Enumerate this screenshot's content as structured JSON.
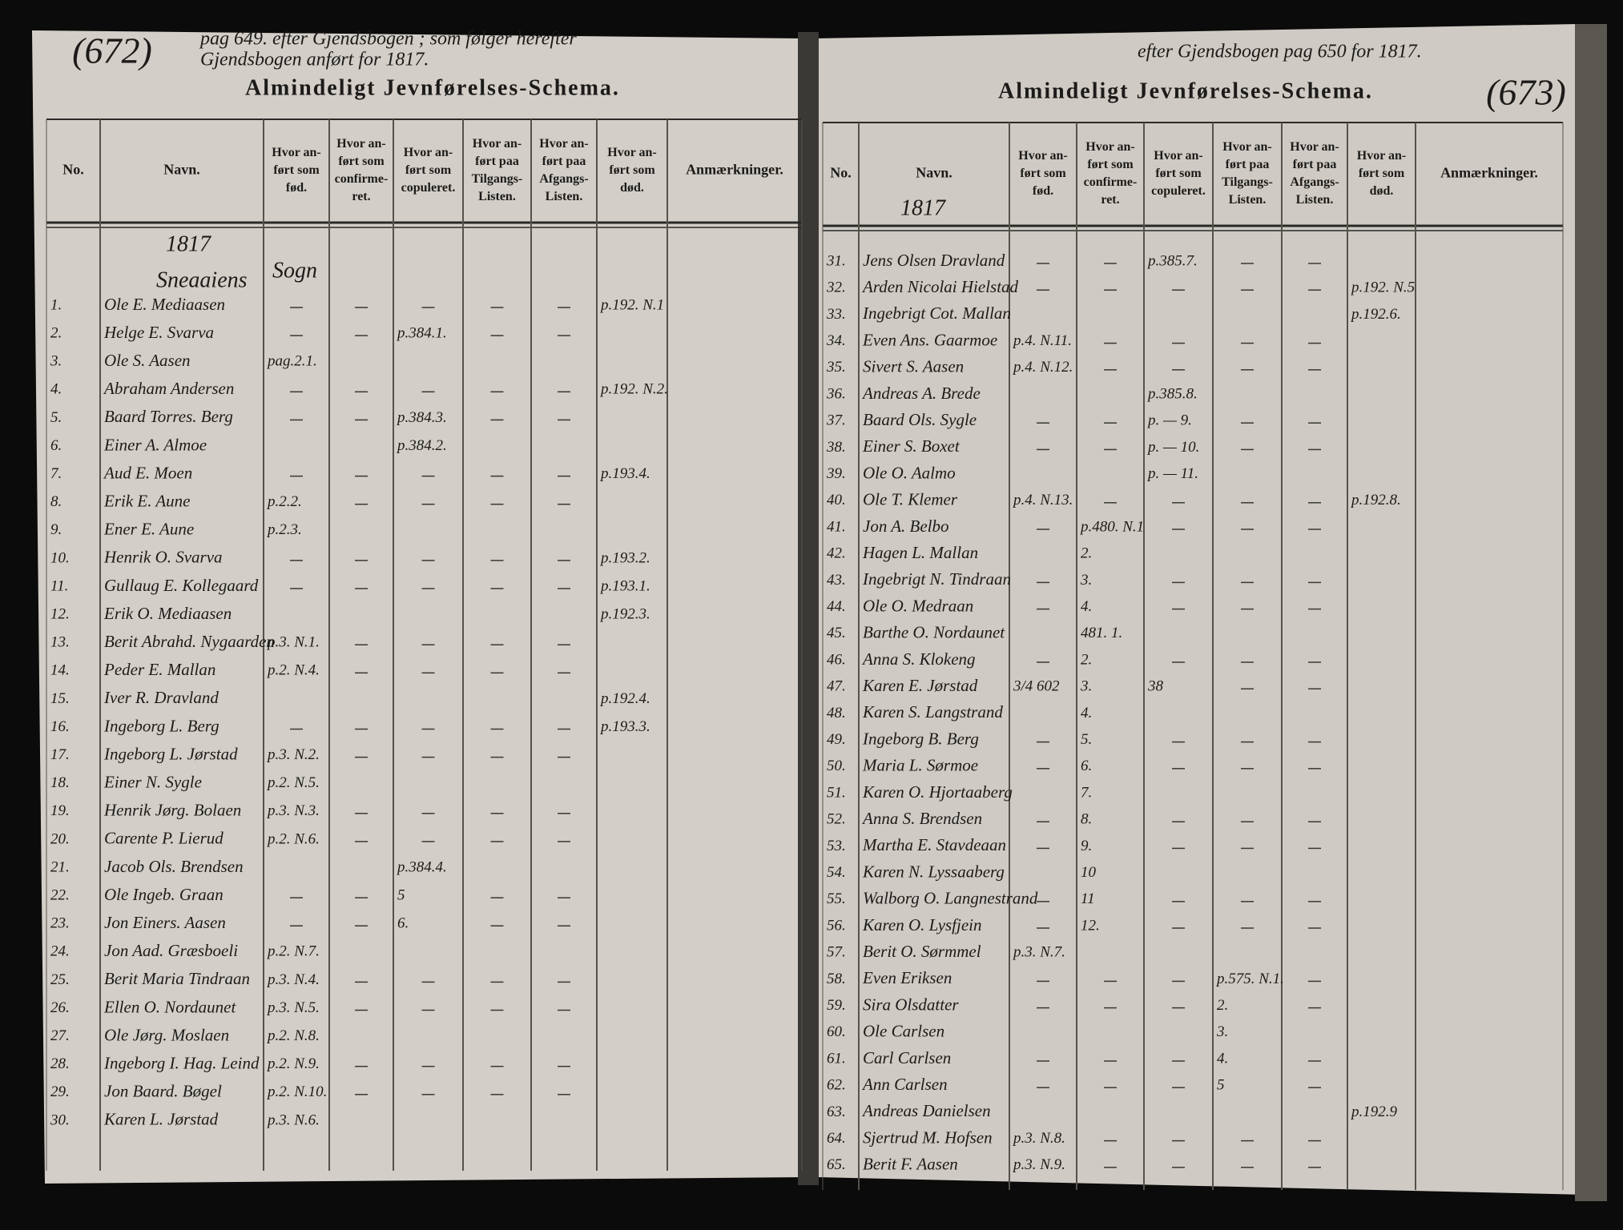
{
  "left_page": {
    "page_number": "(672)",
    "header_note": [
      "pag 649. efter Gjendsbogen ; som følger herefter",
      "Gjendsbogen anført for 1817."
    ],
    "title": "Almindeligt Jevnførelses-Schema.",
    "columns": [
      [
        "No."
      ],
      [
        "Navn."
      ],
      [
        "Hvor an-",
        "ført som",
        "fød."
      ],
      [
        "Hvor an-",
        "ført som",
        "confirme-",
        "ret."
      ],
      [
        "Hvor an-",
        "ført som",
        "copuleret."
      ],
      [
        "Hvor an-",
        "ført paa",
        "Tilgangs-",
        "Listen."
      ],
      [
        "Hvor an-",
        "ført paa",
        "Afgangs-",
        "Listen."
      ],
      [
        "Hvor an-",
        "ført som",
        "død."
      ],
      [
        "Anmærkninger."
      ]
    ],
    "year": "1817",
    "section": [
      "Sneaaiens",
      "Sogn"
    ],
    "rows": [
      {
        "no": "1.",
        "name": "Ole E. Mediaasen",
        "dod": "p.192. N.1"
      },
      {
        "no": "2.",
        "name": "Helge E. Svarva",
        "cop": "p.384.1."
      },
      {
        "no": "3.",
        "name": "Ole S. Aasen",
        "fod": "pag.2.1."
      },
      {
        "no": "4.",
        "name": "Abraham Andersen",
        "dod": "p.192. N.2."
      },
      {
        "no": "5.",
        "name": "Baard Torres. Berg",
        "cop": "p.384.3."
      },
      {
        "no": "6.",
        "name": "Einer A. Almoe",
        "cop": "p.384.2."
      },
      {
        "no": "7.",
        "name": "Aud E. Moen",
        "dod": "p.193.4."
      },
      {
        "no": "8.",
        "name": "Erik E. Aune",
        "fod": "p.2.2."
      },
      {
        "no": "9.",
        "name": "Ener E. Aune",
        "fod": "p.2.3."
      },
      {
        "no": "10.",
        "name": "Henrik O. Svarva",
        "dod": "p.193.2."
      },
      {
        "no": "11.",
        "name": "Gullaug E. Kollegaard",
        "dod": "p.193.1."
      },
      {
        "no": "12.",
        "name": "Erik O. Mediaasen",
        "dod": "p.192.3."
      },
      {
        "no": "13.",
        "name": "Berit Abrahd. Nygaarden",
        "fod": "p.3. N.1."
      },
      {
        "no": "14.",
        "name": "Peder E. Mallan",
        "fod": "p.2. N.4."
      },
      {
        "no": "15.",
        "name": "Iver R. Dravland",
        "dod": "p.192.4."
      },
      {
        "no": "16.",
        "name": "Ingeborg L. Berg",
        "dod": "p.193.3."
      },
      {
        "no": "17.",
        "name": "Ingeborg L. Jørstad",
        "fod": "p.3. N.2."
      },
      {
        "no": "18.",
        "name": "Einer N. Sygle",
        "fod": "p.2. N.5."
      },
      {
        "no": "19.",
        "name": "Henrik Jørg. Bolaen",
        "fod": "p.3. N.3."
      },
      {
        "no": "20.",
        "name": "Carente P. Lierud",
        "fod": "p.2. N.6."
      },
      {
        "no": "21.",
        "name": "Jacob Ols. Brendsen",
        "cop": "p.384.4."
      },
      {
        "no": "22.",
        "name": "Ole Ingeb. Graan",
        "cop": "5"
      },
      {
        "no": "23.",
        "name": "Jon Einers. Aasen",
        "cop": "6."
      },
      {
        "no": "24.",
        "name": "Jon Aad. Græsboeli",
        "fod": "p.2. N.7."
      },
      {
        "no": "25.",
        "name": "Berit Maria Tindraan",
        "fod": "p.3. N.4."
      },
      {
        "no": "26.",
        "name": "Ellen O. Nordaunet",
        "fod": "p.3. N.5."
      },
      {
        "no": "27.",
        "name": "Ole Jørg. Moslaen",
        "fod": "p.2. N.8."
      },
      {
        "no": "28.",
        "name": "Ingeborg I. Hag. Leind",
        "fod": "p.2. N.9."
      },
      {
        "no": "29.",
        "name": "Jon Baard. Bøgel",
        "fod": "p.2. N.10."
      },
      {
        "no": "30.",
        "name": "Karen L. Jørstad",
        "fod": "p.3. N.6."
      }
    ]
  },
  "right_page": {
    "page_number": "(673)",
    "header_note": [
      "efter Gjendsbogen pag 650 for 1817."
    ],
    "title": "Almindeligt Jevnførelses-Schema.",
    "columns": [
      [
        "No."
      ],
      [
        "Navn."
      ],
      [
        "Hvor an-",
        "ført som",
        "fød."
      ],
      [
        "Hvor an-",
        "ført som",
        "confirme-",
        "ret."
      ],
      [
        "Hvor an-",
        "ført som",
        "copuleret."
      ],
      [
        "Hvor an-",
        "ført paa",
        "Tilgangs-",
        "Listen."
      ],
      [
        "Hvor an-",
        "ført paa",
        "Afgangs-",
        "Listen."
      ],
      [
        "Hvor an-",
        "ført som",
        "død."
      ],
      [
        "Anmærkninger."
      ]
    ],
    "year": "1817",
    "rows": [
      {
        "no": "31.",
        "name": "Jens Olsen Dravland",
        "cop": "p.385.7."
      },
      {
        "no": "32.",
        "name": "Arden Nicolai Hielstad",
        "dod": "p.192. N.5"
      },
      {
        "no": "33.",
        "name": "Ingebrigt Cot. Mallan",
        "dod": "p.192.6."
      },
      {
        "no": "34.",
        "name": "Even Ans. Gaarmoe",
        "fod": "p.4. N.11."
      },
      {
        "no": "35.",
        "name": "Sivert S. Aasen",
        "fod": "p.4. N.12."
      },
      {
        "no": "36.",
        "name": "Andreas A. Brede",
        "cop": "p.385.8."
      },
      {
        "no": "37.",
        "name": "Baard Ols. Sygle",
        "cop": "p. — 9."
      },
      {
        "no": "38.",
        "name": "Einer S. Boxet",
        "cop": "p. — 10."
      },
      {
        "no": "39.",
        "name": "Ole O. Aalmo",
        "cop": "p. — 11."
      },
      {
        "no": "40.",
        "name": "Ole T. Klemer",
        "fod": "p.4. N.13.",
        "dod": "p.192.8."
      },
      {
        "no": "41.",
        "name": "Jon A. Belbo",
        "conf": "p.480. N.1"
      },
      {
        "no": "42.",
        "name": "Hagen L. Mallan",
        "conf": "2."
      },
      {
        "no": "43.",
        "name": "Ingebrigt N. Tindraan",
        "conf": "3."
      },
      {
        "no": "44.",
        "name": "Ole O. Medraan",
        "conf": "4."
      },
      {
        "no": "45.",
        "name": "Barthe O. Nordaunet",
        "conf": "481. 1."
      },
      {
        "no": "46.",
        "name": "Anna S. Klokeng",
        "conf": "2."
      },
      {
        "no": "47.",
        "name": "Karen E. Jørstad",
        "fod": "3/4 602",
        "conf": "3.",
        "cop": "38"
      },
      {
        "no": "48.",
        "name": "Karen S. Langstrand",
        "conf": "4."
      },
      {
        "no": "49.",
        "name": "Ingeborg B. Berg",
        "conf": "5."
      },
      {
        "no": "50.",
        "name": "Maria L. Sørmoe",
        "conf": "6."
      },
      {
        "no": "51.",
        "name": "Karen O. Hjortaaberg",
        "conf": "7."
      },
      {
        "no": "52.",
        "name": "Anna S. Brendsen",
        "conf": "8."
      },
      {
        "no": "53.",
        "name": "Martha E. Stavdeaan",
        "conf": "9."
      },
      {
        "no": "54.",
        "name": "Karen N. Lyssaaberg",
        "conf": "10"
      },
      {
        "no": "55.",
        "name": "Walborg O. Langnestrand",
        "conf": "11"
      },
      {
        "no": "56.",
        "name": "Karen O. Lysfjein",
        "conf": "12."
      },
      {
        "no": "57.",
        "name": "Berit O. Sørmmel",
        "fod": "p.3. N.7."
      },
      {
        "no": "58.",
        "name": "Even Eriksen",
        "tilg": "p.575. N.1."
      },
      {
        "no": "59.",
        "name": "Sira Olsdatter",
        "tilg": "2."
      },
      {
        "no": "60.",
        "name": "Ole Carlsen",
        "tilg": "3."
      },
      {
        "no": "61.",
        "name": "Carl Carlsen",
        "tilg": "4."
      },
      {
        "no": "62.",
        "name": "Ann Carlsen",
        "tilg": "5"
      },
      {
        "no": "63.",
        "name": "Andreas Danielsen",
        "dod": "p.192.9"
      },
      {
        "no": "64.",
        "name": "Sjertrud M. Hofsen",
        "fod": "p.3. N.8."
      },
      {
        "no": "65.",
        "name": "Berit F. Aasen",
        "fod": "p.3. N.9."
      }
    ]
  }
}
